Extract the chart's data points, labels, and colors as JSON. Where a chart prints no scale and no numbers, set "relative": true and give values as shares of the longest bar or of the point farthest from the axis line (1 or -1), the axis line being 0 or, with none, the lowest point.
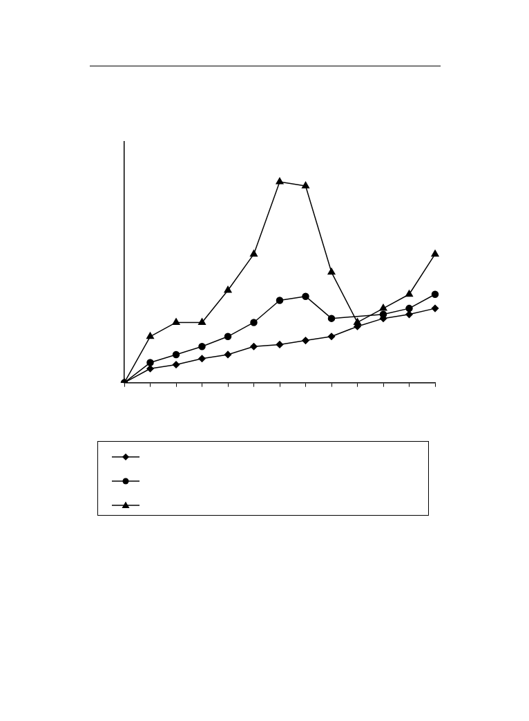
{
  "chart_data": {
    "type": "line",
    "relative": true,
    "categories": [
      null,
      null,
      null,
      null,
      null,
      null,
      null,
      null,
      null,
      null,
      null,
      null,
      null
    ],
    "grid": false,
    "series": [
      {
        "color": "#000000",
        "marker": "diamond",
        "values": [
          0,
          0.07,
          0.09,
          0.12,
          0.14,
          0.18,
          0.19,
          0.21,
          0.23,
          0.28,
          0.32,
          0.34,
          0.37
        ]
      },
      {
        "color": "#000000",
        "marker": "circle",
        "values": [
          0,
          0.1,
          0.14,
          0.18,
          0.23,
          0.3,
          0.41,
          0.43,
          0.32,
          null,
          0.34,
          0.37,
          0.44
        ]
      },
      {
        "color": "#000000",
        "marker": "triangle",
        "values": [
          0,
          0.23,
          0.3,
          0.3,
          0.46,
          0.64,
          1,
          0.98,
          0.55,
          0.3,
          0.37,
          0.44,
          0.64
        ]
      }
    ]
  }
}
